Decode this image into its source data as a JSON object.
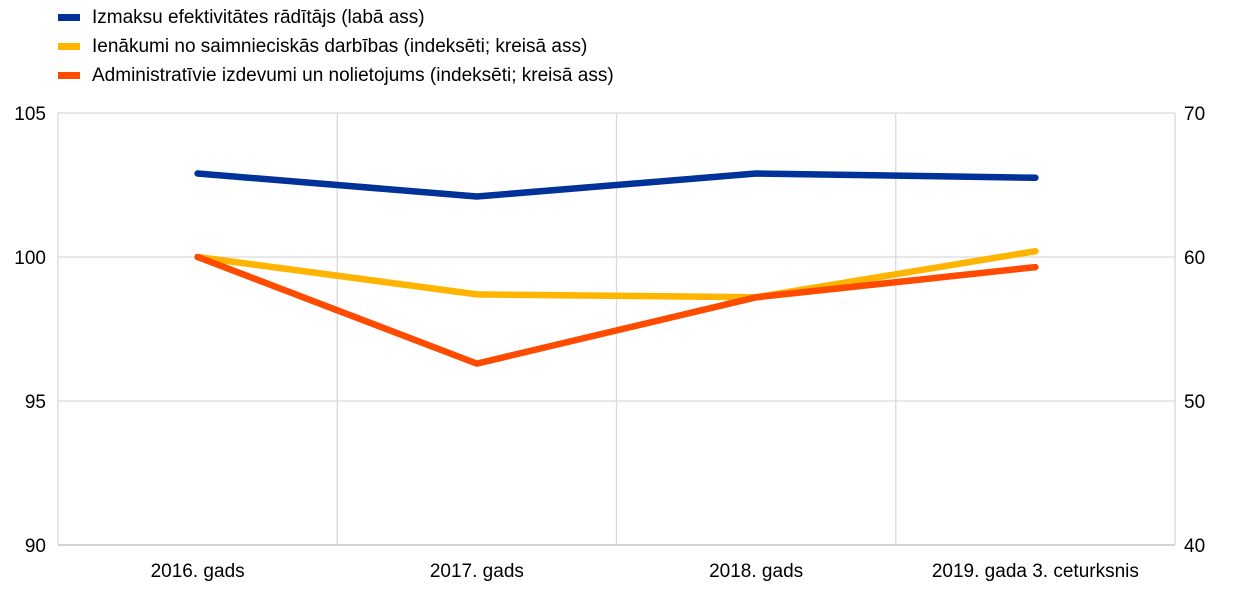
{
  "chart_data": {
    "type": "line",
    "categories": [
      "2016. gads",
      "2017. gads",
      "2018. gads",
      "2019. gada 3. ceturksnis"
    ],
    "series": [
      {
        "name": "Izmaksu efektivitātes rādītājs (labā ass)",
        "axis": "right",
        "color": "#003299",
        "values": [
          65.8,
          64.2,
          65.8,
          65.5
        ]
      },
      {
        "name": "Ienākumi no saimnieciskās darbības (indeksēti; kreisā ass)",
        "axis": "left",
        "color": "#FFB400",
        "values": [
          100.0,
          98.7,
          98.6,
          100.2
        ]
      },
      {
        "name": "Administratīvie izdevumi un nolietojums (indeksēti; kreisā ass)",
        "axis": "left",
        "color": "#FF4B00",
        "values": [
          100.0,
          96.3,
          98.6,
          99.65
        ]
      }
    ],
    "yleft": {
      "min": 90,
      "max": 105,
      "ticks": [
        "90",
        "95",
        "100",
        "105"
      ]
    },
    "yright": {
      "min": 40,
      "max": 70,
      "ticks": [
        "40",
        "50",
        "60",
        "70"
      ]
    },
    "grid": true,
    "legend_position": "top-left"
  }
}
